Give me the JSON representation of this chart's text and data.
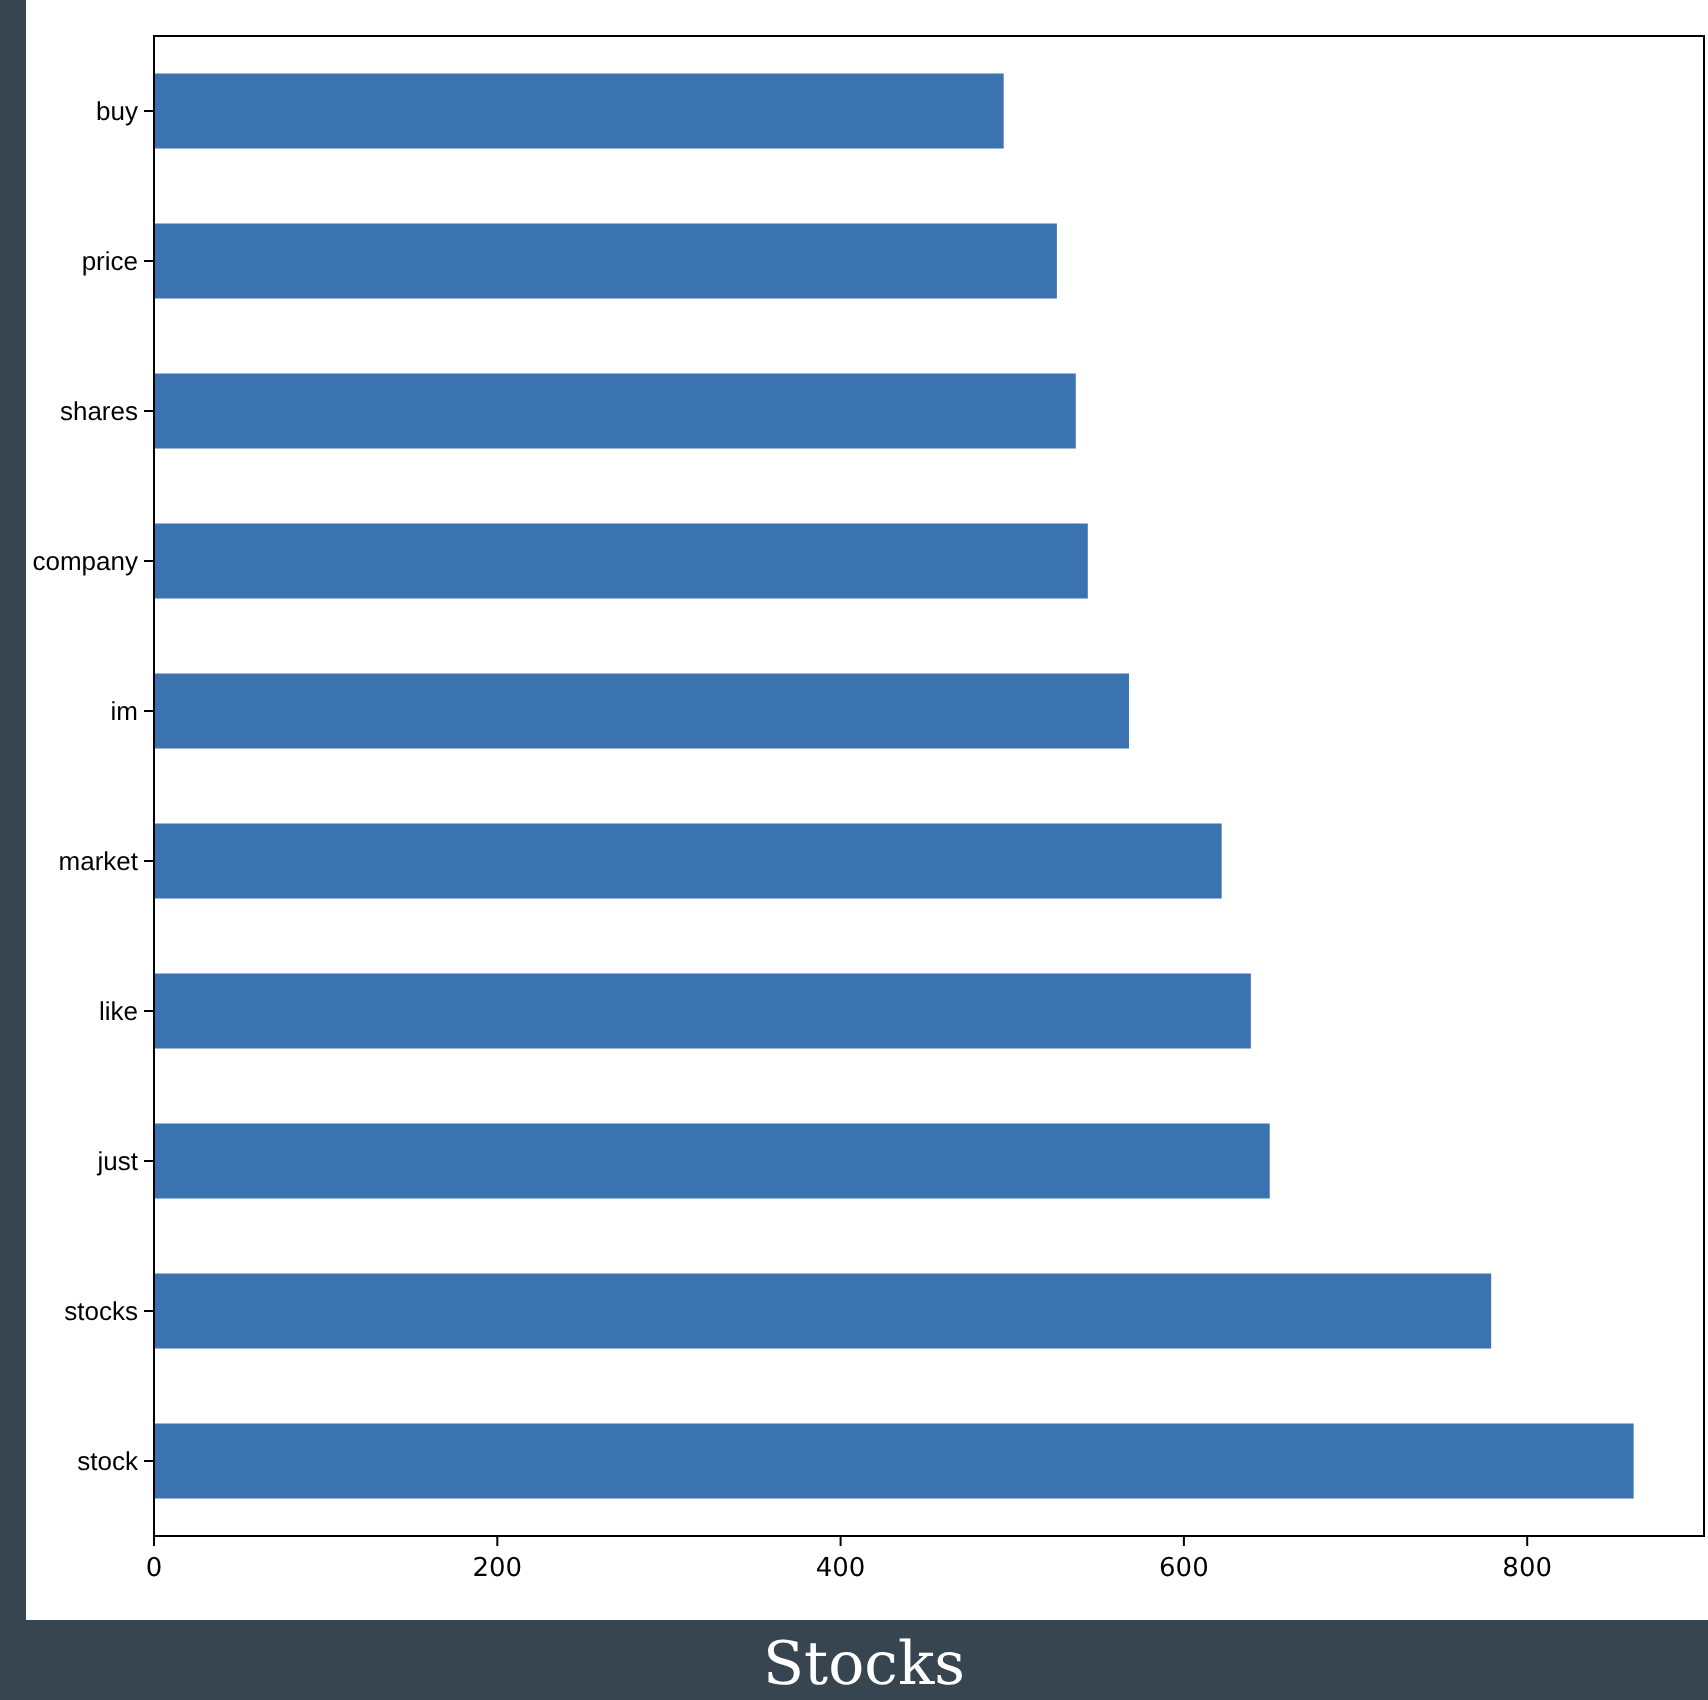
{
  "chart_data": {
    "type": "bar",
    "orientation": "horizontal",
    "title": "Stocks",
    "categories": [
      "buy",
      "price",
      "shares",
      "company",
      "im",
      "market",
      "like",
      "just",
      "stocks",
      "stock"
    ],
    "values": [
      495,
      526,
      537,
      544,
      568,
      622,
      639,
      650,
      779,
      862
    ],
    "color": "#3a73b0",
    "xlim": [
      0,
      903
    ],
    "xticks": [
      0,
      200,
      400,
      600,
      800
    ],
    "grid": false
  }
}
